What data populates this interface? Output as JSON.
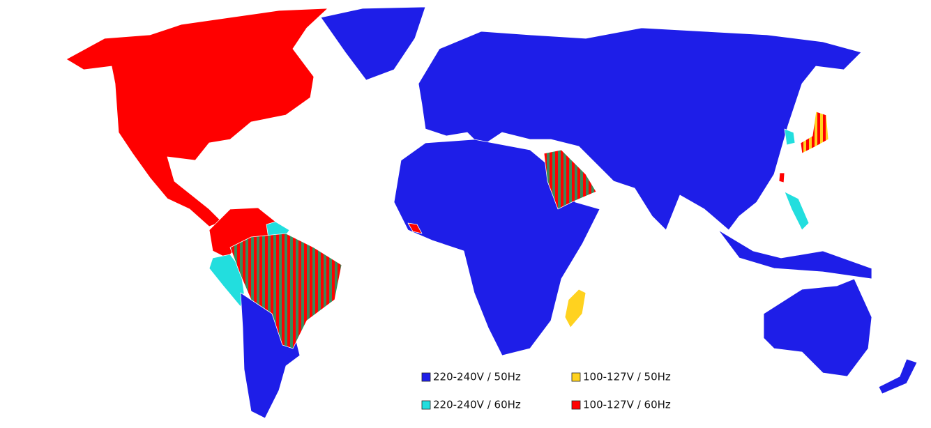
{
  "legend": [
    {
      "label": "220-240V / 50Hz",
      "color": "#1e1ee8"
    },
    {
      "label": "100-127V / 50Hz",
      "color": "#ffd21f"
    },
    {
      "label": "220-240V / 60Hz",
      "color": "#22dede"
    },
    {
      "label": "100-127V / 60Hz",
      "color": "#ff0000"
    }
  ]
}
